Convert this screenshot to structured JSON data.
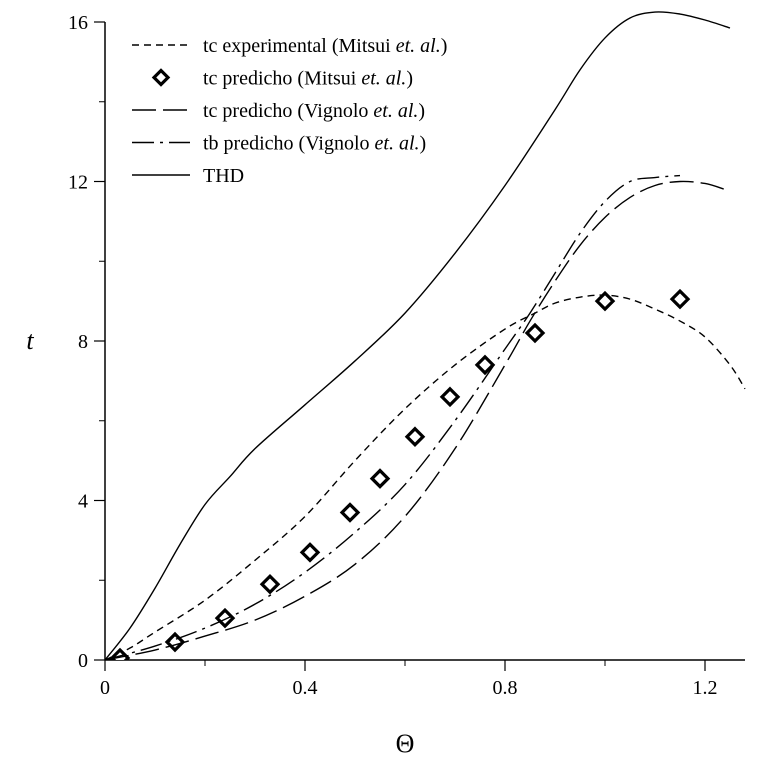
{
  "chart_data": {
    "type": "line",
    "xlabel": "Θ",
    "ylabel": "t",
    "xlim": [
      0,
      1.28
    ],
    "ylim": [
      0,
      16
    ],
    "x_ticks": [
      {
        "value": 0,
        "label": "0"
      },
      {
        "value": 0.4,
        "label": "0.4"
      },
      {
        "value": 0.8,
        "label": "0.8"
      },
      {
        "value": 1.2,
        "label": "1.2"
      }
    ],
    "y_ticks": [
      {
        "value": 0,
        "label": "0"
      },
      {
        "value": 4,
        "label": "4"
      },
      {
        "value": 8,
        "label": "8"
      },
      {
        "value": 12,
        "label": "12"
      },
      {
        "value": 16,
        "label": "16"
      }
    ],
    "x_minor_step": 0.2,
    "y_minor_step": 2,
    "grid": false,
    "legend_position": "top-left",
    "series": [
      {
        "name": "tc experimental (Mitsui",
        "name_italic": "et. al.",
        "name_suffix": ")",
        "style": "dashed",
        "x": [
          0,
          0.05,
          0.1,
          0.2,
          0.3,
          0.4,
          0.5,
          0.6,
          0.7,
          0.8,
          0.86,
          0.9,
          0.95,
          1.0,
          1.05,
          1.1,
          1.15,
          1.2,
          1.25,
          1.28
        ],
        "y": [
          0,
          0.3,
          0.7,
          1.5,
          2.5,
          3.6,
          5.0,
          6.3,
          7.4,
          8.3,
          8.7,
          8.95,
          9.1,
          9.15,
          9.05,
          8.8,
          8.5,
          8.1,
          7.4,
          6.8
        ]
      },
      {
        "name": "tc predicho (Mitsui",
        "name_italic": "et. al.",
        "name_suffix": ")",
        "style": "markers",
        "marker": "diamond",
        "x": [
          0.03,
          0.14,
          0.24,
          0.33,
          0.41,
          0.49,
          0.55,
          0.62,
          0.69,
          0.76,
          0.86,
          1.0,
          1.15
        ],
        "y": [
          0.05,
          0.45,
          1.05,
          1.9,
          2.7,
          3.7,
          4.55,
          5.6,
          6.6,
          7.4,
          8.2,
          9.0,
          9.05
        ]
      },
      {
        "name": "tc predicho (Vignolo",
        "name_italic": "et. al.",
        "name_suffix": ")",
        "style": "long-dash",
        "x": [
          0,
          0.1,
          0.2,
          0.3,
          0.4,
          0.5,
          0.6,
          0.7,
          0.8,
          0.85,
          0.9,
          0.95,
          1.0,
          1.05,
          1.1,
          1.15,
          1.2,
          1.24
        ],
        "y": [
          0,
          0.25,
          0.6,
          1.0,
          1.6,
          2.4,
          3.6,
          5.3,
          7.4,
          8.5,
          9.5,
          10.4,
          11.1,
          11.6,
          11.9,
          12.0,
          11.95,
          11.8
        ]
      },
      {
        "name": "tb predicho (Vignolo",
        "name_italic": "et. al.",
        "name_suffix": ")",
        "style": "dash-dot",
        "x": [
          0,
          0.1,
          0.2,
          0.3,
          0.4,
          0.5,
          0.6,
          0.7,
          0.8,
          0.85,
          0.9,
          0.95,
          1.0,
          1.05,
          1.1,
          1.15
        ],
        "y": [
          0,
          0.35,
          0.8,
          1.4,
          2.2,
          3.2,
          4.4,
          6.0,
          7.8,
          8.7,
          9.7,
          10.7,
          11.5,
          12.0,
          12.1,
          12.15
        ]
      },
      {
        "name": "THD",
        "name_italic": "",
        "name_suffix": "",
        "style": "solid",
        "x": [
          0,
          0.05,
          0.1,
          0.15,
          0.2,
          0.25,
          0.3,
          0.4,
          0.5,
          0.6,
          0.7,
          0.8,
          0.9,
          0.95,
          1.0,
          1.05,
          1.1,
          1.15,
          1.2,
          1.25
        ],
        "y": [
          0,
          0.8,
          1.8,
          2.9,
          3.9,
          4.6,
          5.3,
          6.4,
          7.5,
          8.7,
          10.2,
          11.9,
          13.8,
          14.8,
          15.6,
          16.1,
          16.25,
          16.2,
          16.05,
          15.85
        ]
      }
    ]
  }
}
